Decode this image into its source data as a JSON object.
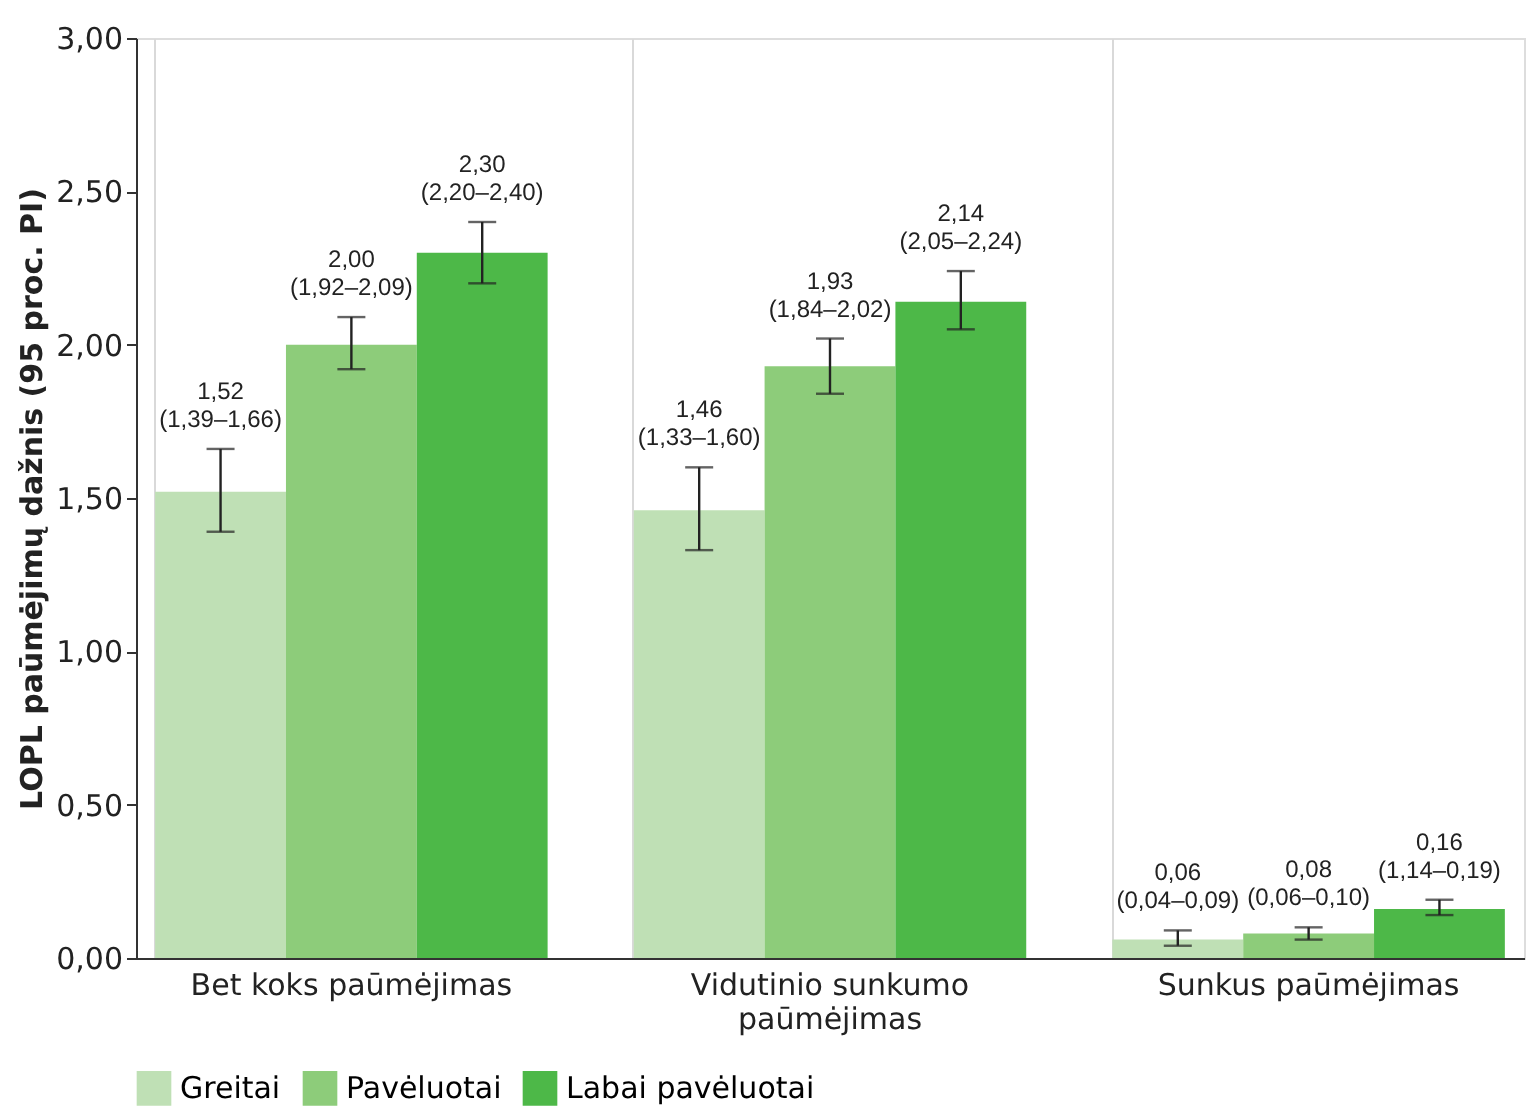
{
  "chart_data": {
    "type": "bar",
    "ylabel": "LOPL paūmėjimų dažnis (95 proc. PI)",
    "categories": [
      "Bet koks paūmėjimas",
      "Vidutinio sunkumo paūmėjimas",
      "Sunkus paūmėjimas"
    ],
    "series": [
      {
        "name": "Greitai",
        "color": "#bfe0b5",
        "values": [
          1.52,
          1.46,
          0.06
        ],
        "errors": [
          [
            1.39,
            1.66
          ],
          [
            1.33,
            1.6
          ],
          [
            0.04,
            0.09
          ]
        ],
        "value_labels": [
          "1,52\n(1,39–1,66)",
          "1,46\n(1,33–1,60)",
          "0,06\n(0,04–0,09)"
        ]
      },
      {
        "name": "Pavėluotai",
        "color": "#8dcc7a",
        "values": [
          2.0,
          1.93,
          0.08
        ],
        "errors": [
          [
            1.92,
            2.09
          ],
          [
            1.84,
            2.02
          ],
          [
            0.06,
            0.1
          ]
        ],
        "value_labels": [
          "2,00\n(1,92–2,09)",
          "1,93\n(1,84–2,02)",
          "0,08\n(0,06–0,10)"
        ]
      },
      {
        "name": "Labai pavėluotai",
        "color": "#4db848",
        "values": [
          2.3,
          2.14,
          0.16
        ],
        "errors": [
          [
            2.2,
            2.4
          ],
          [
            2.05,
            2.24
          ],
          [
            0.14,
            0.19
          ]
        ],
        "value_labels": [
          "2,30\n(2,20–2,40)",
          "2,14\n(2,05–2,24)",
          "0,16\n(1,14–0,19)"
        ]
      }
    ],
    "ylim": [
      0,
      3
    ],
    "yticks": [
      {
        "value": 0,
        "label": "0,00"
      },
      {
        "value": 0.5,
        "label": "0,50"
      },
      {
        "value": 1,
        "label": "1,00"
      },
      {
        "value": 1.5,
        "label": "1,50"
      },
      {
        "value": 2,
        "label": "2,00"
      },
      {
        "value": 2.5,
        "label": "2,50"
      },
      {
        "value": 3,
        "label": "3,00"
      }
    ],
    "grid": "x",
    "legend": "bottom"
  }
}
